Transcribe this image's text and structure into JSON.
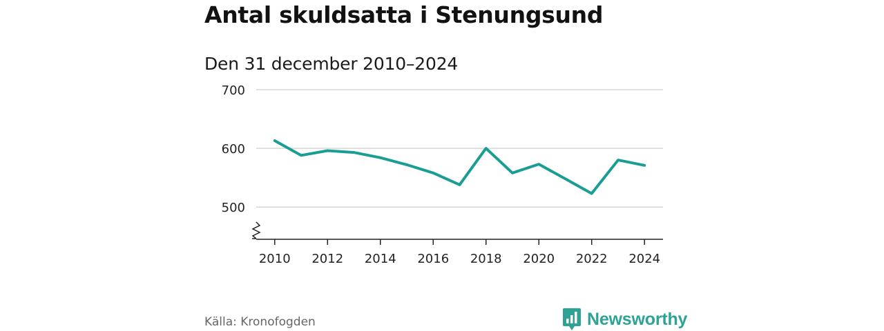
{
  "title": "Antal skuldsatta i Stenungsund",
  "subtitle": "Den 31 december 2010–2024",
  "source": "Källa: Kronofogden",
  "brand": {
    "name": "Newsworthy",
    "color": "#2ea395",
    "logo_icon": "bar-chart-speech-bubble-icon"
  },
  "colors": {
    "line": "#1a9e93",
    "grid": "#d6d6d6",
    "axis": "#222222",
    "tick_text": "#222222"
  },
  "chart_data": {
    "type": "line",
    "title": "Antal skuldsatta i Stenungsund",
    "subtitle": "Den 31 december 2010–2024",
    "xlabel": "",
    "ylabel": "",
    "x": [
      2010,
      2011,
      2012,
      2013,
      2014,
      2015,
      2016,
      2017,
      2018,
      2019,
      2020,
      2021,
      2022,
      2023,
      2024
    ],
    "series": [
      {
        "name": "Antal skuldsatta",
        "values": [
          613,
          588,
          596,
          593,
          584,
          572,
          558,
          538,
          600,
          558,
          573,
          548,
          523,
          580,
          571
        ]
      }
    ],
    "xticks": [
      2010,
      2012,
      2014,
      2016,
      2018,
      2020,
      2022,
      2024
    ],
    "yticks": [
      500,
      600,
      700
    ],
    "ylim": [
      445,
      700
    ],
    "xlim": [
      2009.3,
      2024.7
    ],
    "y_axis_break": true,
    "grid": true,
    "legend": "none"
  }
}
